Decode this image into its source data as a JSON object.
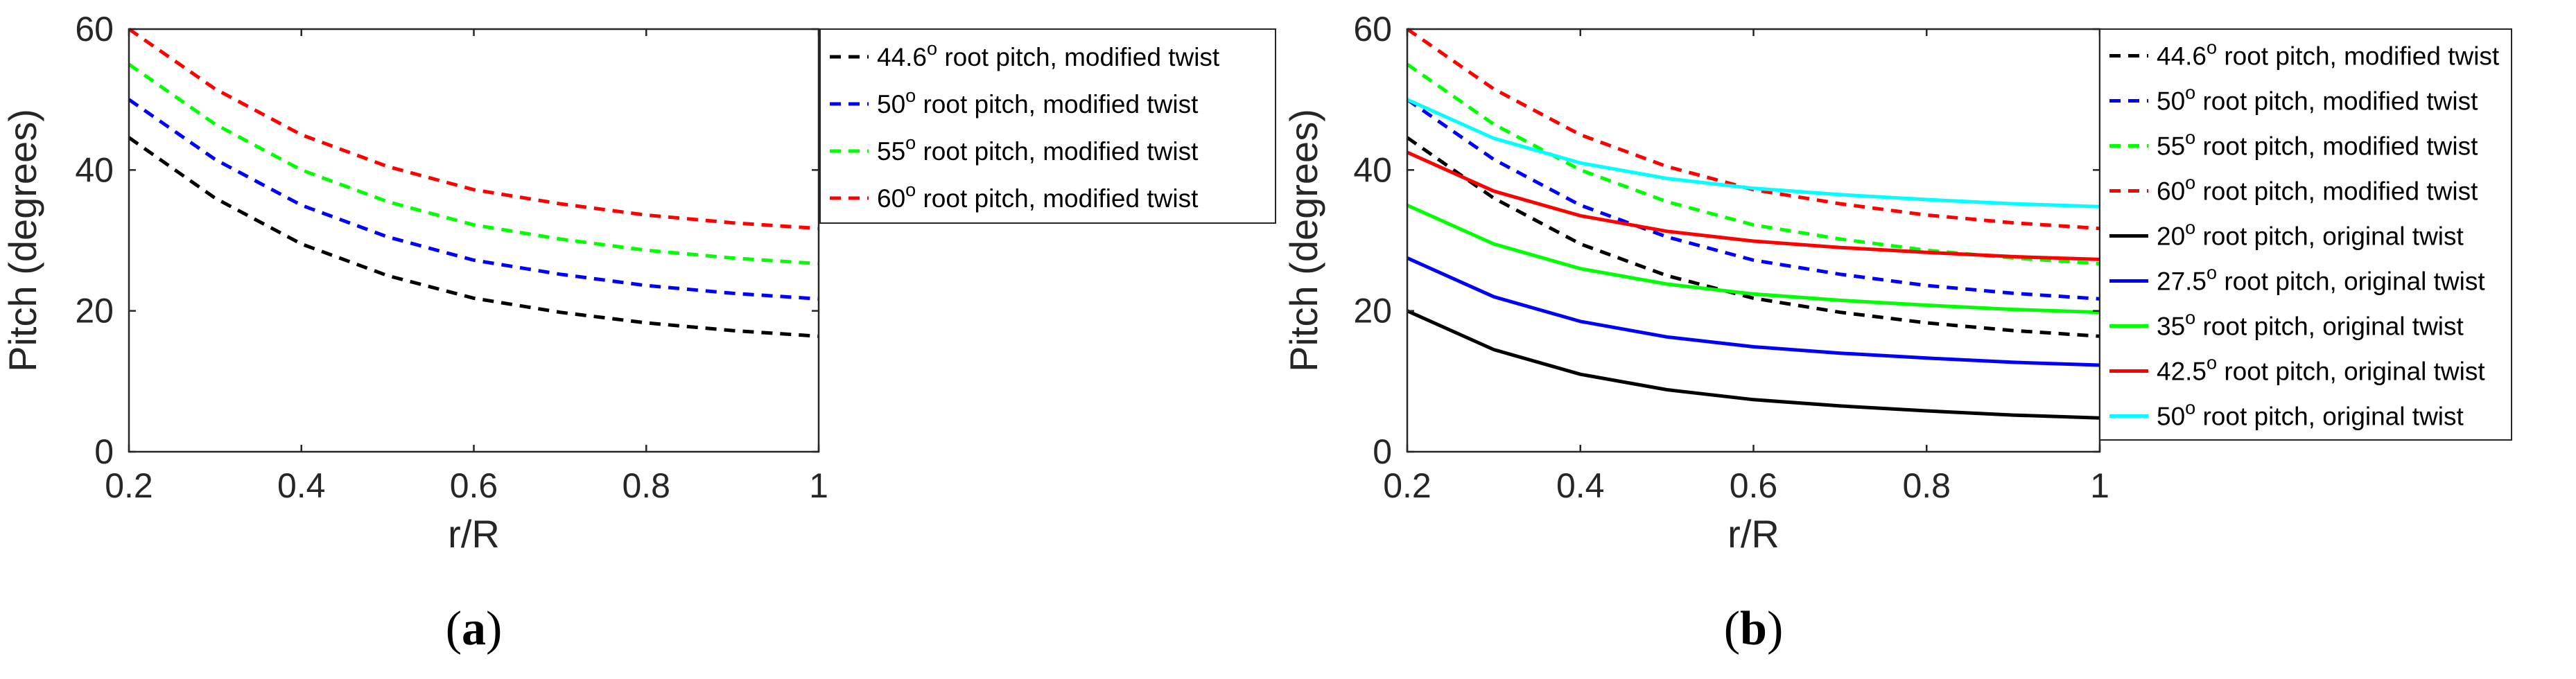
{
  "chart_data": [
    {
      "type": "line",
      "panel": "a",
      "caption_letter": "a",
      "caption_open": "(",
      "caption_close": ")",
      "xlabel": "r/R",
      "ylabel": "Pitch (degrees)",
      "xlim": [
        0.2,
        1
      ],
      "ylim": [
        0,
        60
      ],
      "xticks": [
        "0.2",
        "0.4",
        "0.6",
        "0.8",
        "1"
      ],
      "yticks": [
        "0",
        "20",
        "40",
        "60"
      ],
      "legend_position": "outside-right-top",
      "x": [
        0.2,
        0.3,
        0.4,
        0.5,
        0.6,
        0.7,
        0.8,
        0.9,
        1.0
      ],
      "series": [
        {
          "name": "44.6",
          "label": " root pitch, modified twist",
          "sup": "o",
          "color": "#000000",
          "style": "dashed",
          "values": [
            44.6,
            36.0,
            29.5,
            25.0,
            21.8,
            19.8,
            18.3,
            17.2,
            16.4
          ]
        },
        {
          "name": "50",
          "label": " root pitch, modified twist",
          "sup": "o",
          "color": "#0000ff",
          "style": "dashed",
          "values": [
            50.0,
            41.5,
            35.0,
            30.5,
            27.2,
            25.2,
            23.6,
            22.5,
            21.7
          ]
        },
        {
          "name": "55",
          "label": " root pitch, modified twist",
          "sup": "o",
          "color": "#00ff00",
          "style": "dashed",
          "values": [
            55.0,
            46.5,
            40.0,
            35.5,
            32.2,
            30.2,
            28.6,
            27.5,
            26.7
          ]
        },
        {
          "name": "60",
          "label": " root pitch, modified twist",
          "sup": "o",
          "color": "#ff0000",
          "style": "dashed",
          "values": [
            60.0,
            51.5,
            45.0,
            40.5,
            37.2,
            35.2,
            33.6,
            32.5,
            31.7
          ]
        }
      ]
    },
    {
      "type": "line",
      "panel": "b",
      "caption_letter": "b",
      "caption_open": "(",
      "caption_close": ")",
      "xlabel": "r/R",
      "ylabel": "Pitch (degrees)",
      "xlim": [
        0.2,
        1
      ],
      "ylim": [
        0,
        60
      ],
      "xticks": [
        "0.2",
        "0.4",
        "0.6",
        "0.8",
        "1"
      ],
      "yticks": [
        "0",
        "20",
        "40",
        "60"
      ],
      "legend_position": "outside-right-top",
      "x": [
        0.2,
        0.3,
        0.4,
        0.5,
        0.6,
        0.7,
        0.8,
        0.9,
        1.0
      ],
      "series": [
        {
          "name": "44.6",
          "label": " root pitch, modified twist",
          "sup": "o",
          "color": "#000000",
          "style": "dashed",
          "values": [
            44.6,
            36.0,
            29.5,
            25.0,
            21.8,
            19.8,
            18.3,
            17.2,
            16.4
          ]
        },
        {
          "name": "50",
          "label": " root pitch, modified twist",
          "sup": "o",
          "color": "#0000ff",
          "style": "dashed",
          "values": [
            50.0,
            41.5,
            35.0,
            30.5,
            27.2,
            25.2,
            23.6,
            22.5,
            21.7
          ]
        },
        {
          "name": "55",
          "label": " root pitch, modified twist",
          "sup": "o",
          "color": "#00ff00",
          "style": "dashed",
          "values": [
            55.0,
            46.5,
            40.0,
            35.5,
            32.2,
            30.2,
            28.6,
            27.5,
            26.7
          ]
        },
        {
          "name": "60",
          "label": " root pitch, modified twist",
          "sup": "o",
          "color": "#ff0000",
          "style": "dashed",
          "values": [
            60.0,
            51.5,
            45.0,
            40.5,
            37.2,
            35.2,
            33.6,
            32.5,
            31.7
          ]
        },
        {
          "name": "20",
          "label": " root pitch, original twist",
          "sup": "o",
          "color": "#000000",
          "style": "solid",
          "values": [
            20.0,
            14.5,
            11.0,
            8.8,
            7.4,
            6.5,
            5.8,
            5.2,
            4.8
          ]
        },
        {
          "name": "27.5",
          "label": " root pitch, original twist",
          "sup": "o",
          "color": "#0000ff",
          "style": "solid",
          "values": [
            27.5,
            22.0,
            18.5,
            16.3,
            14.9,
            14.0,
            13.3,
            12.7,
            12.3
          ]
        },
        {
          "name": "35",
          "label": " root pitch, original twist",
          "sup": "o",
          "color": "#00ff00",
          "style": "solid",
          "values": [
            35.0,
            29.5,
            26.0,
            23.8,
            22.4,
            21.5,
            20.8,
            20.2,
            19.8
          ]
        },
        {
          "name": "42.5",
          "label": " root pitch, original twist",
          "sup": "o",
          "color": "#ff0000",
          "style": "solid",
          "values": [
            42.5,
            37.0,
            33.5,
            31.3,
            29.9,
            29.0,
            28.3,
            27.7,
            27.3
          ]
        },
        {
          "name": "50",
          "label": " root pitch, original twist",
          "sup": "o",
          "color": "#00ffff",
          "style": "solid",
          "values": [
            50.0,
            44.5,
            41.0,
            38.8,
            37.4,
            36.5,
            35.8,
            35.2,
            34.8
          ]
        }
      ]
    }
  ]
}
